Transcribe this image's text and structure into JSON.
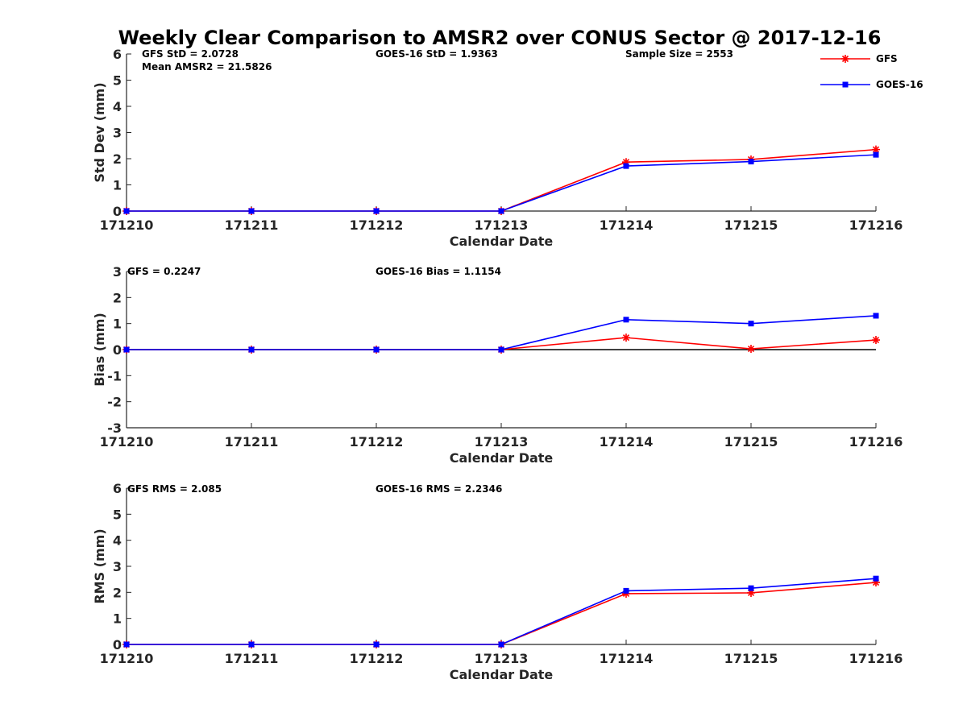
{
  "title": "Weekly Clear Comparison to AMSR2 over CONUS Sector @ 2017-12-16",
  "legend": {
    "placement": "top-right",
    "items": [
      {
        "label": "GFS",
        "color": "#ff0000",
        "marker": "asterisk"
      },
      {
        "label": "GOES-16",
        "color": "#0000ff",
        "marker": "square"
      }
    ]
  },
  "chart_data": [
    {
      "type": "line",
      "xlabel": "Calendar Date",
      "ylabel": "Std Dev (mm)",
      "x": [
        "171210",
        "171211",
        "171212",
        "171213",
        "171214",
        "171215",
        "171216"
      ],
      "ylim": [
        0,
        6
      ],
      "yticks": [
        "0",
        "1",
        "2",
        "3",
        "4",
        "5",
        "6"
      ],
      "zero_line": false,
      "series": [
        {
          "name": "GFS",
          "color": "#ff0000",
          "marker": "asterisk",
          "values": [
            0,
            0,
            0,
            0,
            1.87,
            1.97,
            2.35
          ]
        },
        {
          "name": "GOES-16",
          "color": "#0000ff",
          "marker": "square",
          "values": [
            0,
            0,
            0,
            0,
            1.72,
            1.89,
            2.15
          ]
        }
      ],
      "annotations": [
        "GFS StD = 2.0728",
        "Mean AMSR2 = 21.5826",
        "GOES-16 StD = 1.9363",
        "Sample Size = 2553"
      ]
    },
    {
      "type": "line",
      "xlabel": "Calendar Date",
      "ylabel": "Bias (mm)",
      "x": [
        "171210",
        "171211",
        "171212",
        "171213",
        "171214",
        "171215",
        "171216"
      ],
      "ylim": [
        -3,
        3
      ],
      "yticks": [
        "-3",
        "-2",
        "-1",
        "0",
        "1",
        "2",
        "3"
      ],
      "zero_line": true,
      "series": [
        {
          "name": "GFS",
          "color": "#ff0000",
          "marker": "asterisk",
          "values": [
            0,
            0,
            0,
            0,
            0.46,
            0.03,
            0.37
          ]
        },
        {
          "name": "GOES-16",
          "color": "#0000ff",
          "marker": "square",
          "values": [
            0,
            0,
            0,
            0,
            1.15,
            1.0,
            1.3
          ]
        }
      ],
      "annotations": [
        "GFS = 0.2247",
        "GOES-16 Bias  = 1.1154"
      ]
    },
    {
      "type": "line",
      "xlabel": "Calendar Date",
      "ylabel": "RMS (mm)",
      "x": [
        "171210",
        "171211",
        "171212",
        "171213",
        "171214",
        "171215",
        "171216"
      ],
      "ylim": [
        0,
        6
      ],
      "yticks": [
        "0",
        "1",
        "2",
        "3",
        "4",
        "5",
        "6"
      ],
      "zero_line": false,
      "series": [
        {
          "name": "GFS",
          "color": "#ff0000",
          "marker": "asterisk",
          "values": [
            0,
            0,
            0,
            0,
            1.95,
            1.98,
            2.38
          ]
        },
        {
          "name": "GOES-16",
          "color": "#0000ff",
          "marker": "square",
          "values": [
            0,
            0,
            0,
            0,
            2.06,
            2.16,
            2.53
          ]
        }
      ],
      "annotations": [
        "GFS RMS = 2.085",
        "GOES-16 RMS = 2.2346"
      ]
    }
  ]
}
